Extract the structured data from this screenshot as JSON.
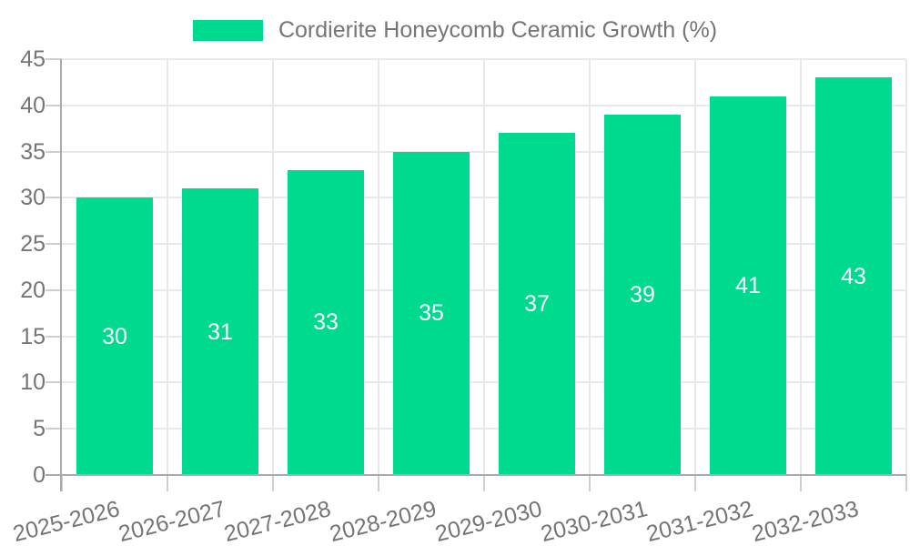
{
  "chart_data": {
    "type": "bar",
    "title": "",
    "categories": [
      "2025-2026",
      "2026-2027",
      "2027-2028",
      "2028-2029",
      "2029-2030",
      "2030-2031",
      "2031-2032",
      "2032-2033"
    ],
    "series": [
      {
        "name": "Cordierite Honeycomb Ceramic Growth (%)",
        "values": [
          30,
          31,
          33,
          35,
          37,
          39,
          41,
          43
        ]
      }
    ],
    "bar_value_labels": [
      "30",
      "31",
      "33",
      "35",
      "37",
      "39",
      "41",
      "43"
    ],
    "xlabel": "",
    "ylabel": "",
    "ylim": [
      0,
      45
    ],
    "yticks": [
      0,
      5,
      10,
      15,
      20,
      25,
      30,
      35,
      40,
      45
    ],
    "grid": true,
    "legend_position": "top-center"
  },
  "colors": {
    "bar": "#00da8f",
    "grid_line": "#e9e9e9",
    "tick_mark": "#cfcfcf",
    "axis_line": "#aaaaaa",
    "axis_label": "#757575",
    "legend_text": "#757575",
    "bar_value_text": "#ffffff",
    "background": "#ffffff"
  }
}
